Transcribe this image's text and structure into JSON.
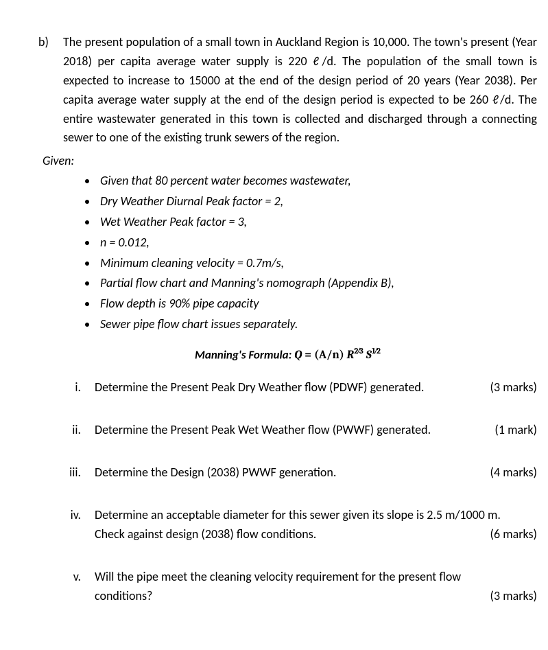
{
  "mainItem": {
    "label": "b)",
    "text": "The present population of a small town in Auckland Region is 10,000. The town's present (Year 2018) per capita average water supply is 220 ℓ/d. The population of the small town is expected to increase to 15000 at the end of the design period of 20 years (Year 2038). Per capita average water supply at the end of the design period is expected to be 260 ℓ/d. The entire wastewater generated in this town is collected and discharged through a connecting sewer to one of the existing trunk sewers of the region."
  },
  "givenLabel": "Given:",
  "bullets": [
    "Given that 80 percent water becomes wastewater,",
    "Dry Weather Diurnal Peak factor = 2,",
    "Wet Weather Peak factor = 3,",
    "n = 0.012,",
    "Minimum cleaning velocity = 0.7m/s,",
    "Partial flow chart and Manning's nomograph (Appendix B),",
    "Flow depth is 90% pipe capacity",
    "Sewer pipe flow chart issues separately."
  ],
  "formula": {
    "prefix": "Manning's Formula:  ",
    "Q": "Q",
    "eq": " = ",
    "Aovern": "(A/n) ",
    "R": "R",
    "Rexp": "2⁄3",
    "S": " S",
    "Sexp": "1⁄2"
  },
  "subItems": [
    {
      "roman": "i.",
      "lines": [
        "Determine the Present Peak Dry Weather flow (PDWF) generated."
      ],
      "marks": "(3 marks)"
    },
    {
      "roman": "ii.",
      "lines": [
        "Determine the Present Peak Wet Weather flow (PWWF) generated."
      ],
      "marks": "(1 mark)"
    },
    {
      "roman": "iii.",
      "lines": [
        "Determine the Design (2038) PWWF generation."
      ],
      "marks": "(4 marks)"
    },
    {
      "roman": "iv.",
      "lines": [
        "Determine an acceptable diameter for this sewer given its slope is 2.5 m/1000 m.",
        "Check against design (2038) flow conditions."
      ],
      "marks": "(6 marks)"
    },
    {
      "roman": "v.",
      "lines": [
        "Will the pipe meet the cleaning velocity requirement for the present flow",
        "conditions?"
      ],
      "marks": "(3 marks)"
    }
  ]
}
